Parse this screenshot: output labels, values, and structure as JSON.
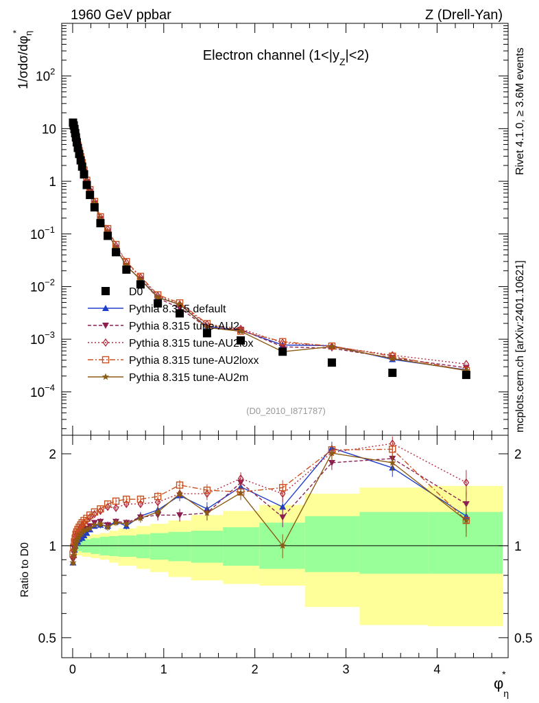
{
  "header": {
    "left": "1960 GeV ppbar",
    "right": "Z (Drell-Yan)"
  },
  "side": {
    "rivet": "Rivet 4.1.0, ≥ 3.6M events",
    "mcplots": "mcplots.cern.ch [arXiv:2401.10621]"
  },
  "chart_data": {
    "type": "scatter",
    "title": "Electron channel (1<|y_Z|<2)",
    "title_parts": [
      "Electron channel (1<|y",
      "Z",
      "|<2)"
    ],
    "analysis_tag": "(D0_2010_I871787)",
    "ylabel_parts": [
      "1/σdσ/dφ",
      "η",
      "*"
    ],
    "xlabel_parts": [
      "φ",
      "η",
      "*"
    ],
    "ratio_ylabel": "Ratio to D0",
    "xlim": [
      -0.12,
      4.78
    ],
    "ylim_main": [
      1.5e-05,
      1000
    ],
    "ylim_ratio": [
      0.43,
      2.3
    ],
    "x_ticks": [
      0,
      1,
      2,
      3,
      4
    ],
    "x_tick_labels": [
      "0",
      "1",
      "2",
      "3",
      "4"
    ],
    "y_ticks_main": [
      {
        "value": 0.0001,
        "base": "10",
        "exp": "−4"
      },
      {
        "value": 0.001,
        "base": "10",
        "exp": "−3"
      },
      {
        "value": 0.01,
        "base": "10",
        "exp": "−2"
      },
      {
        "value": 0.1,
        "base": "10",
        "exp": "−1"
      },
      {
        "value": 1,
        "base": "1",
        "exp": ""
      },
      {
        "value": 10,
        "base": "10",
        "exp": ""
      },
      {
        "value": 100,
        "base": "10",
        "exp": "2"
      }
    ],
    "y_ticks_ratio": [
      {
        "value": 0.5,
        "label": "0.5"
      },
      {
        "value": 1,
        "label": "1"
      },
      {
        "value": 2,
        "label": "2"
      }
    ],
    "x": [
      0.004,
      0.012,
      0.02,
      0.028,
      0.036,
      0.045,
      0.057,
      0.072,
      0.088,
      0.104,
      0.125,
      0.155,
      0.19,
      0.24,
      0.305,
      0.385,
      0.475,
      0.59,
      0.745,
      0.935,
      1.175,
      1.475,
      1.845,
      2.305,
      2.845,
      3.51,
      4.32
    ],
    "data": {
      "name": "D0",
      "color": "#000000",
      "values": [
        13.0,
        11.5,
        9.8,
        8.2,
        6.8,
        5.5,
        4.3,
        3.3,
        2.5,
        1.9,
        1.35,
        0.85,
        0.55,
        0.32,
        0.16,
        0.092,
        0.045,
        0.021,
        0.011,
        0.0048,
        0.0031,
        0.0013,
        0.00095,
        0.00058,
        0.00036,
        0.00023,
        0.00021
      ]
    },
    "series": [
      {
        "name": "Pythia 8.315 default",
        "color": "#1e3ec8",
        "marker": "triangle-up",
        "dash": "",
        "ratio": [
          0.88,
          0.93,
          0.97,
          1.0,
          1.02,
          1.03,
          1.03,
          1.05,
          1.06,
          1.06,
          1.08,
          1.1,
          1.13,
          1.16,
          1.17,
          1.16,
          1.2,
          1.16,
          1.25,
          1.31,
          1.46,
          1.32,
          1.56,
          1.34,
          2.09,
          1.8,
          1.25
        ],
        "err": [
          0.02,
          0.02,
          0.02,
          0.02,
          0.02,
          0.02,
          0.02,
          0.02,
          0.02,
          0.02,
          0.02,
          0.02,
          0.02,
          0.02,
          0.03,
          0.03,
          0.03,
          0.03,
          0.04,
          0.05,
          0.06,
          0.07,
          0.08,
          0.09,
          0.1,
          0.12,
          0.14
        ]
      },
      {
        "name": "Pythia 8.315 tune-AU2",
        "color": "#8c1f50",
        "marker": "triangle-down",
        "dash": "5,3",
        "ratio": [
          0.9,
          0.95,
          0.98,
          1.01,
          1.03,
          1.05,
          1.06,
          1.08,
          1.1,
          1.12,
          1.13,
          1.14,
          1.16,
          1.19,
          1.2,
          1.17,
          1.2,
          1.19,
          1.24,
          1.26,
          1.26,
          1.28,
          1.61,
          1.24,
          1.87,
          1.93,
          1.37
        ],
        "err": [
          0.02,
          0.02,
          0.02,
          0.02,
          0.02,
          0.02,
          0.02,
          0.02,
          0.02,
          0.02,
          0.02,
          0.02,
          0.02,
          0.02,
          0.03,
          0.03,
          0.03,
          0.03,
          0.04,
          0.05,
          0.06,
          0.07,
          0.08,
          0.09,
          0.1,
          0.12,
          0.14
        ]
      },
      {
        "name": "Pythia 8.315 tune-AU2lox",
        "color": "#b4283c",
        "marker": "diamond",
        "dash": "2,3",
        "ratio": [
          0.92,
          0.97,
          1.01,
          1.04,
          1.07,
          1.09,
          1.11,
          1.13,
          1.15,
          1.17,
          1.19,
          1.21,
          1.24,
          1.27,
          1.3,
          1.34,
          1.33,
          1.37,
          1.37,
          1.39,
          1.48,
          1.48,
          1.66,
          1.48,
          2.02,
          2.16,
          1.61
        ],
        "err": [
          0.02,
          0.02,
          0.02,
          0.02,
          0.02,
          0.02,
          0.02,
          0.02,
          0.02,
          0.02,
          0.02,
          0.02,
          0.02,
          0.02,
          0.03,
          0.03,
          0.03,
          0.03,
          0.04,
          0.05,
          0.06,
          0.07,
          0.08,
          0.09,
          0.1,
          0.12,
          0.16
        ]
      },
      {
        "name": "Pythia 8.315 tune-AU2loxx",
        "color": "#c8501e",
        "marker": "square-open",
        "dash": "8,3,2,3",
        "ratio": [
          0.94,
          0.99,
          1.03,
          1.06,
          1.09,
          1.11,
          1.13,
          1.15,
          1.17,
          1.19,
          1.21,
          1.23,
          1.26,
          1.29,
          1.32,
          1.37,
          1.4,
          1.42,
          1.42,
          1.45,
          1.58,
          1.52,
          1.5,
          1.55,
          2.06,
          2.07,
          1.21
        ],
        "err": [
          0.02,
          0.02,
          0.02,
          0.02,
          0.02,
          0.02,
          0.02,
          0.02,
          0.02,
          0.02,
          0.02,
          0.02,
          0.02,
          0.02,
          0.03,
          0.03,
          0.03,
          0.03,
          0.04,
          0.05,
          0.06,
          0.07,
          0.08,
          0.09,
          0.1,
          0.12,
          0.14
        ]
      },
      {
        "name": "Pythia 8.315 tune-AU2m",
        "color": "#8b5a14",
        "marker": "star",
        "dash": "",
        "ratio": [
          0.88,
          0.93,
          0.97,
          1.0,
          1.02,
          1.04,
          1.05,
          1.07,
          1.09,
          1.1,
          1.12,
          1.13,
          1.14,
          1.17,
          1.18,
          1.15,
          1.19,
          1.18,
          1.23,
          1.29,
          1.48,
          1.28,
          1.49,
          1.0,
          2.01,
          1.87,
          1.21
        ],
        "err": [
          0.02,
          0.02,
          0.02,
          0.02,
          0.02,
          0.02,
          0.02,
          0.02,
          0.02,
          0.02,
          0.02,
          0.02,
          0.02,
          0.02,
          0.03,
          0.03,
          0.03,
          0.03,
          0.04,
          0.05,
          0.06,
          0.07,
          0.08,
          0.09,
          0.12,
          0.12,
          0.14
        ]
      }
    ],
    "uncertainty_bands": {
      "edges": [
        0,
        0.1,
        0.2,
        0.3,
        0.4,
        0.5,
        0.7,
        0.85,
        1.05,
        1.3,
        1.65,
        2.05,
        2.55,
        3.15,
        3.9,
        4.72
      ],
      "inner_low": [
        0.96,
        0.95,
        0.94,
        0.93,
        0.925,
        0.92,
        0.91,
        0.9,
        0.89,
        0.88,
        0.86,
        0.84,
        0.82,
        0.81,
        0.81
      ],
      "inner_high": [
        1.04,
        1.05,
        1.06,
        1.07,
        1.075,
        1.08,
        1.09,
        1.1,
        1.11,
        1.12,
        1.15,
        1.19,
        1.25,
        1.29,
        1.29
      ],
      "outer_low": [
        0.93,
        0.92,
        0.91,
        0.9,
        0.88,
        0.86,
        0.84,
        0.82,
        0.79,
        0.77,
        0.75,
        0.74,
        0.63,
        0.55,
        0.545
      ],
      "outer_high": [
        1.07,
        1.08,
        1.09,
        1.1,
        1.12,
        1.14,
        1.16,
        1.18,
        1.21,
        1.26,
        1.3,
        1.36,
        1.48,
        1.55,
        1.57
      ],
      "inner_color": "#99ff99",
      "outer_color": "#ffff99"
    }
  }
}
